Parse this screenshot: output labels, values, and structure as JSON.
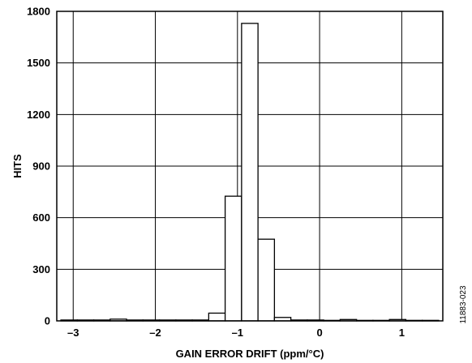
{
  "chart_data": {
    "type": "bar",
    "title": "",
    "xlabel": "GAIN ERROR DRIFT (ppm/°C)",
    "ylabel": "HITS",
    "xlim": [
      -3.2,
      1.5
    ],
    "ylim": [
      0,
      1800
    ],
    "xticks": [
      -3,
      -2,
      -1,
      0,
      1
    ],
    "xtick_labels": [
      "–3",
      "–2",
      "–1",
      "0",
      "1"
    ],
    "yticks": [
      0,
      300,
      600,
      900,
      1200,
      1500,
      1800
    ],
    "ytick_labels": [
      "0",
      "300",
      "600",
      "900",
      "1200",
      "1500",
      "1800"
    ],
    "grid": true,
    "bin_width": 0.2,
    "bins": [
      {
        "x0": -3.15,
        "value": 5
      },
      {
        "x0": -2.95,
        "value": 5
      },
      {
        "x0": -2.75,
        "value": 5
      },
      {
        "x0": -2.55,
        "value": 10
      },
      {
        "x0": -2.35,
        "value": 5
      },
      {
        "x0": -2.15,
        "value": 5
      },
      {
        "x0": -1.95,
        "value": 5
      },
      {
        "x0": -1.75,
        "value": 5
      },
      {
        "x0": -1.55,
        "value": 5
      },
      {
        "x0": -1.35,
        "value": 45
      },
      {
        "x0": -1.15,
        "value": 725
      },
      {
        "x0": -0.95,
        "value": 1730
      },
      {
        "x0": -0.75,
        "value": 475
      },
      {
        "x0": -0.55,
        "value": 20
      },
      {
        "x0": -0.35,
        "value": 5
      },
      {
        "x0": -0.15,
        "value": 5
      },
      {
        "x0": 0.05,
        "value": 3
      },
      {
        "x0": 0.25,
        "value": 8
      },
      {
        "x0": 0.45,
        "value": 3
      },
      {
        "x0": 0.65,
        "value": 3
      },
      {
        "x0": 0.85,
        "value": 8
      },
      {
        "x0": 1.05,
        "value": 3
      },
      {
        "x0": 1.25,
        "value": 3
      }
    ],
    "side_label": "11883-023"
  }
}
